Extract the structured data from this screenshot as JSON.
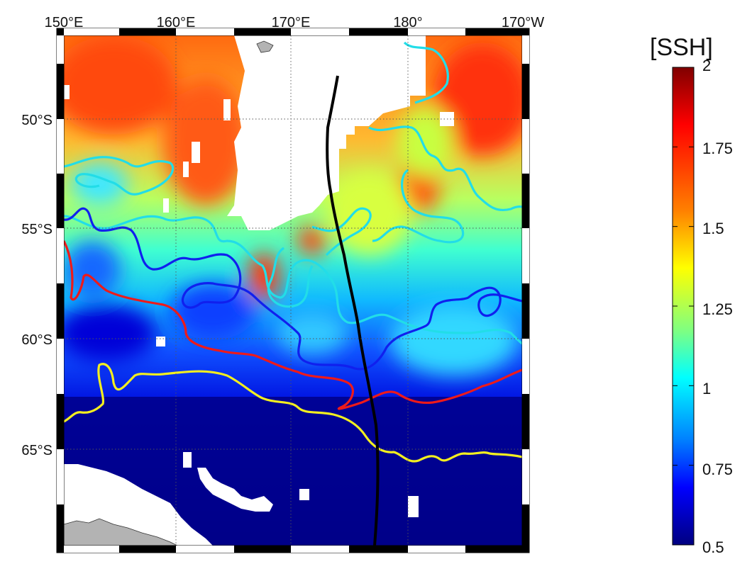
{
  "colorbar": {
    "title": "[SSH]",
    "ticks": [
      "2",
      "1.75",
      "1.5",
      "1.25",
      "1",
      "0.75",
      "0.5"
    ],
    "colors": [
      "#800000",
      "#ff0000",
      "#ff8000",
      "#ffff00",
      "#80ff80",
      "#00ffff",
      "#0080ff",
      "#0000ff",
      "#000080"
    ]
  },
  "axes": {
    "longitude_labels": [
      "150°E",
      "160°E",
      "170°E",
      "180°",
      "170°W"
    ],
    "latitude_labels": [
      "50°S",
      "55°S",
      "60°S",
      "65°S"
    ]
  },
  "legend_colors": {
    "contour_cyan": "#22dde8",
    "contour_blue": "#1020ee",
    "contour_red": "#ee1a1a",
    "contour_yellow": "#f2ee20",
    "track": "#000000",
    "land": "#b3b3b3",
    "no_data": "#ffffff"
  }
}
